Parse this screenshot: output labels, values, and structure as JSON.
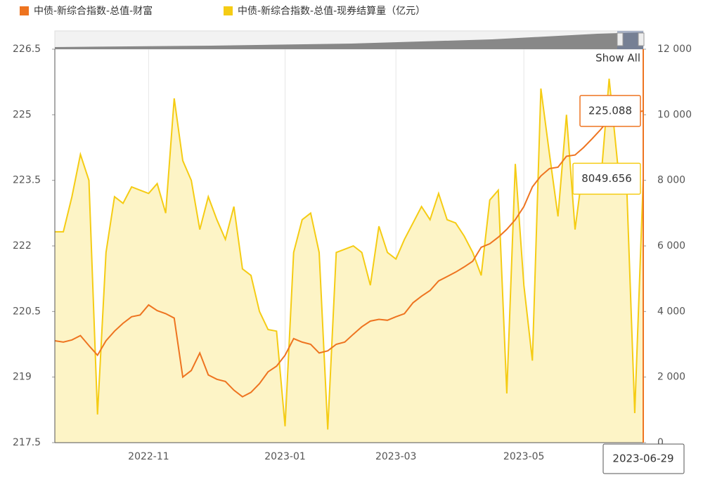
{
  "chart_data": {
    "type": "line",
    "categories": [
      null,
      null,
      null,
      null,
      null,
      null,
      null,
      null,
      null,
      null,
      null,
      "2022-11",
      null,
      null,
      null,
      null,
      null,
      null,
      null,
      null,
      null,
      null,
      null,
      null,
      null,
      null,
      null,
      "2023-01",
      null,
      null,
      null,
      null,
      null,
      null,
      null,
      null,
      null,
      null,
      null,
      null,
      "2023-03",
      null,
      null,
      null,
      null,
      null,
      null,
      null,
      null,
      null,
      null,
      null,
      null,
      null,
      null,
      "2023-05",
      null,
      null,
      null,
      null,
      null,
      null,
      null,
      null,
      null,
      null,
      null,
      null,
      null,
      "2023-06-29"
    ],
    "series": [
      {
        "name": "中债-新综合指数-总值-财富",
        "color": "#ee7420",
        "axis": "y",
        "values": [
          219.83,
          219.8,
          219.85,
          219.95,
          219.72,
          219.5,
          219.83,
          220.05,
          220.23,
          220.38,
          220.42,
          220.65,
          220.52,
          220.45,
          220.35,
          219.0,
          219.15,
          219.55,
          219.05,
          218.95,
          218.9,
          218.7,
          218.55,
          218.65,
          218.85,
          219.12,
          219.25,
          219.5,
          219.88,
          219.8,
          219.75,
          219.55,
          219.6,
          219.75,
          219.8,
          219.98,
          220.15,
          220.28,
          220.32,
          220.3,
          220.38,
          220.45,
          220.7,
          220.85,
          220.98,
          221.2,
          221.3,
          221.4,
          221.52,
          221.65,
          221.97,
          222.05,
          222.2,
          222.38,
          222.6,
          222.9,
          223.35,
          223.6,
          223.77,
          223.8,
          224.05,
          224.08,
          224.25,
          224.45,
          224.66,
          224.9,
          225.1,
          225.0,
          225.05,
          225.088
        ]
      },
      {
        "name": "中债-新综合指数-总值-现券结算量（亿元）",
        "color": "#f5cc14",
        "axis": "y2",
        "values": [
          6430,
          6430,
          7500,
          8790,
          8000,
          860,
          5800,
          7500,
          7300,
          7800,
          7700,
          7600,
          7900,
          7000,
          10500,
          8600,
          8000,
          6500,
          7500,
          6800,
          6200,
          7200,
          5300,
          5100,
          4000,
          3450,
          3400,
          500,
          5800,
          6800,
          7000,
          5800,
          400,
          5800,
          5900,
          6000,
          5800,
          4800,
          6600,
          5800,
          5600,
          6200,
          6700,
          7200,
          6800,
          7600,
          6800,
          6700,
          6300,
          5800,
          5100,
          7400,
          7700,
          1500,
          8500,
          4800,
          2500,
          10800,
          8800,
          6900,
          10000,
          6500,
          8500,
          7800,
          7900,
          11100,
          8500,
          8300,
          900,
          8049.656
        ]
      }
    ],
    "ylim": [
      217.5,
      226.5
    ],
    "yticks": [
      217.5,
      219,
      220.5,
      222,
      223.5,
      225,
      226.5
    ],
    "y2lim": [
      0,
      12000
    ],
    "y2ticks": [
      0,
      {
        "value": 2000,
        "label": "2 000"
      },
      {
        "value": 4000,
        "label": "4 000"
      },
      {
        "value": 6000,
        "label": "6 000"
      },
      {
        "value": 8000,
        "label": "8 000"
      },
      {
        "value": 10000,
        "label": "10 000"
      },
      {
        "value": 12000,
        "label": "12 000"
      }
    ],
    "grid": "x",
    "navigator_label": "Show All"
  }
}
